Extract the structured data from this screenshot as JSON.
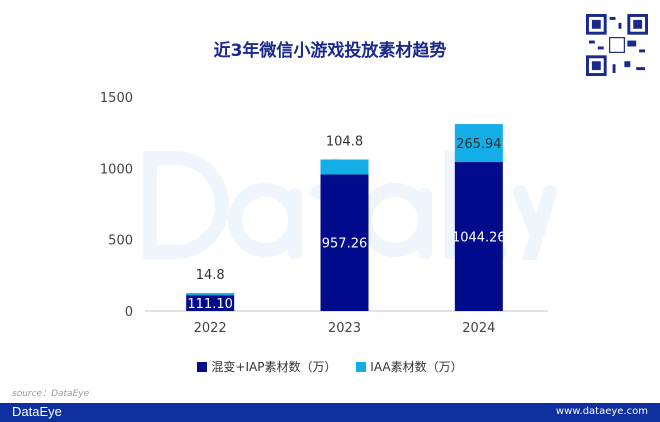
{
  "title": "近3年微信小游戏投放素材趋势",
  "watermark": "DataEye",
  "source": "source：DataEye",
  "footer": {
    "logo": "DataEye",
    "url": "www.dataeye.com"
  },
  "chart_data": {
    "type": "bar",
    "stacked": true,
    "title": "近3年微信小游戏投放素材趋势",
    "categories": [
      "2022",
      "2023",
      "2024"
    ],
    "series": [
      {
        "name": "混变+IAP素材数（万）",
        "values": [
          111.1,
          957.26,
          1044.26
        ],
        "labels": [
          "111.10",
          "957.26",
          "1044.26"
        ],
        "color": "#020b8c"
      },
      {
        "name": "IAA素材数（万）",
        "values": [
          14.8,
          104.8,
          265.94
        ],
        "labels": [
          "14.8",
          "104.8",
          "265.94"
        ],
        "color": "#13aee8"
      }
    ],
    "ylim": [
      0,
      1500
    ],
    "yticks": [
      "0",
      "500",
      "1000",
      "1500"
    ],
    "grid": false,
    "legend": "bottom"
  }
}
